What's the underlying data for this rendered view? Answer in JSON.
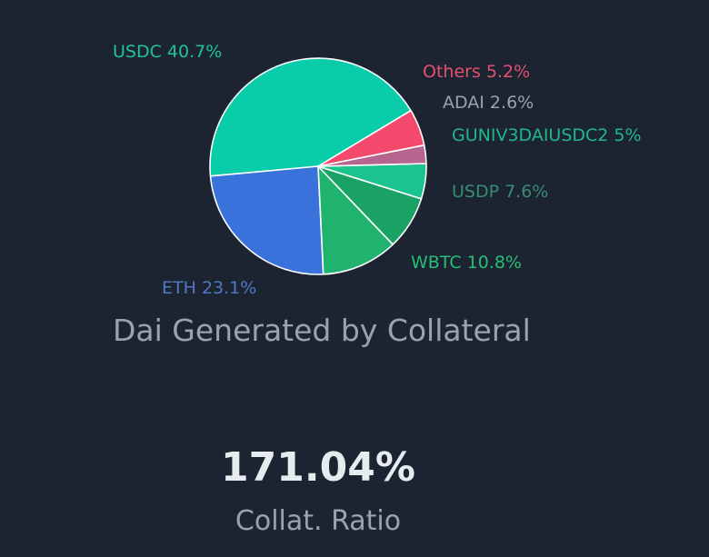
{
  "chart_data": {
    "type": "pie",
    "title": "Dai Generated by Collateral",
    "slices": [
      {
        "label": "USDC 40.7%",
        "name": "USDC",
        "value": 40.7,
        "color": "#08ccaa",
        "label_color": "#1fc396"
      },
      {
        "label": "ETH 23.1%",
        "name": "ETH",
        "value": 23.1,
        "color": "#3a72dc",
        "label_color": "#4d78c2"
      },
      {
        "label": "WBTC 10.8%",
        "name": "WBTC",
        "value": 10.8,
        "color": "#1fb36e",
        "label_color": "#25bf76"
      },
      {
        "label": "USDP 7.6%",
        "name": "USDP",
        "value": 7.6,
        "color": "#1aa164",
        "label_color": "#3a8c73"
      },
      {
        "label": "GUNIV3DAIUSDC2 5%",
        "name": "GUNIV3DAIUSDC2",
        "value": 5.0,
        "color": "#1bc38e",
        "label_color": "#1fb88a"
      },
      {
        "label": "ADAI 2.6%",
        "name": "ADAI",
        "value": 2.6,
        "color": "#b5658e",
        "label_color": "#9aa3ad"
      },
      {
        "label": "Others 5.2%",
        "name": "Others",
        "value": 5.2,
        "color": "#f4486c",
        "label_color": "#e2516f"
      }
    ]
  },
  "stats": {
    "collat_ratio_value": "171.04%",
    "collat_ratio_label": "Collat. Ratio"
  }
}
